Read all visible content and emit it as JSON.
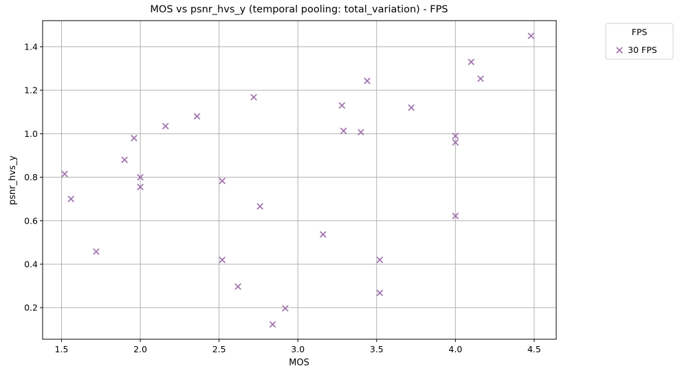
{
  "chart_data": {
    "type": "scatter",
    "title": "MOS vs psnr_hvs_y (temporal pooling: total_variation) - FPS",
    "xlabel": "MOS",
    "ylabel": "psnr_hvs_y",
    "xlim": [
      1.38,
      4.64
    ],
    "ylim": [
      0.055,
      1.52
    ],
    "xticks": [
      1.5,
      2.0,
      2.5,
      3.0,
      3.5,
      4.0,
      4.5
    ],
    "xtick_labels": [
      "1.5",
      "2.0",
      "2.5",
      "3.0",
      "3.5",
      "4.0",
      "4.5"
    ],
    "yticks": [
      0.2,
      0.4,
      0.6,
      0.8,
      1.0,
      1.2,
      1.4
    ],
    "ytick_labels": [
      "0.2",
      "0.4",
      "0.6",
      "0.8",
      "1.0",
      "1.2",
      "1.4"
    ],
    "grid": true,
    "legend": {
      "title": "FPS",
      "placement": "outside-top-right"
    },
    "marker": "x",
    "series": [
      {
        "name": "30 FPS",
        "color": "#9e70ab",
        "points": [
          {
            "x": 1.52,
            "y": 0.815
          },
          {
            "x": 1.56,
            "y": 0.7
          },
          {
            "x": 1.72,
            "y": 0.458
          },
          {
            "x": 1.9,
            "y": 0.88
          },
          {
            "x": 1.96,
            "y": 0.98
          },
          {
            "x": 2.0,
            "y": 0.8
          },
          {
            "x": 2.0,
            "y": 0.755
          },
          {
            "x": 2.16,
            "y": 1.035
          },
          {
            "x": 2.36,
            "y": 1.08
          },
          {
            "x": 2.52,
            "y": 0.783
          },
          {
            "x": 2.52,
            "y": 0.42
          },
          {
            "x": 2.62,
            "y": 0.297
          },
          {
            "x": 2.72,
            "y": 1.168
          },
          {
            "x": 2.76,
            "y": 0.666
          },
          {
            "x": 2.84,
            "y": 0.123
          },
          {
            "x": 2.92,
            "y": 0.197
          },
          {
            "x": 3.16,
            "y": 0.537
          },
          {
            "x": 3.28,
            "y": 1.13
          },
          {
            "x": 3.29,
            "y": 1.013
          },
          {
            "x": 3.4,
            "y": 1.007
          },
          {
            "x": 3.44,
            "y": 1.243
          },
          {
            "x": 3.52,
            "y": 0.42
          },
          {
            "x": 3.52,
            "y": 0.268
          },
          {
            "x": 3.72,
            "y": 1.12
          },
          {
            "x": 4.0,
            "y": 0.99
          },
          {
            "x": 4.0,
            "y": 0.96
          },
          {
            "x": 4.0,
            "y": 0.622
          },
          {
            "x": 4.1,
            "y": 1.33
          },
          {
            "x": 4.16,
            "y": 1.253
          },
          {
            "x": 4.48,
            "y": 1.45
          }
        ]
      }
    ]
  }
}
